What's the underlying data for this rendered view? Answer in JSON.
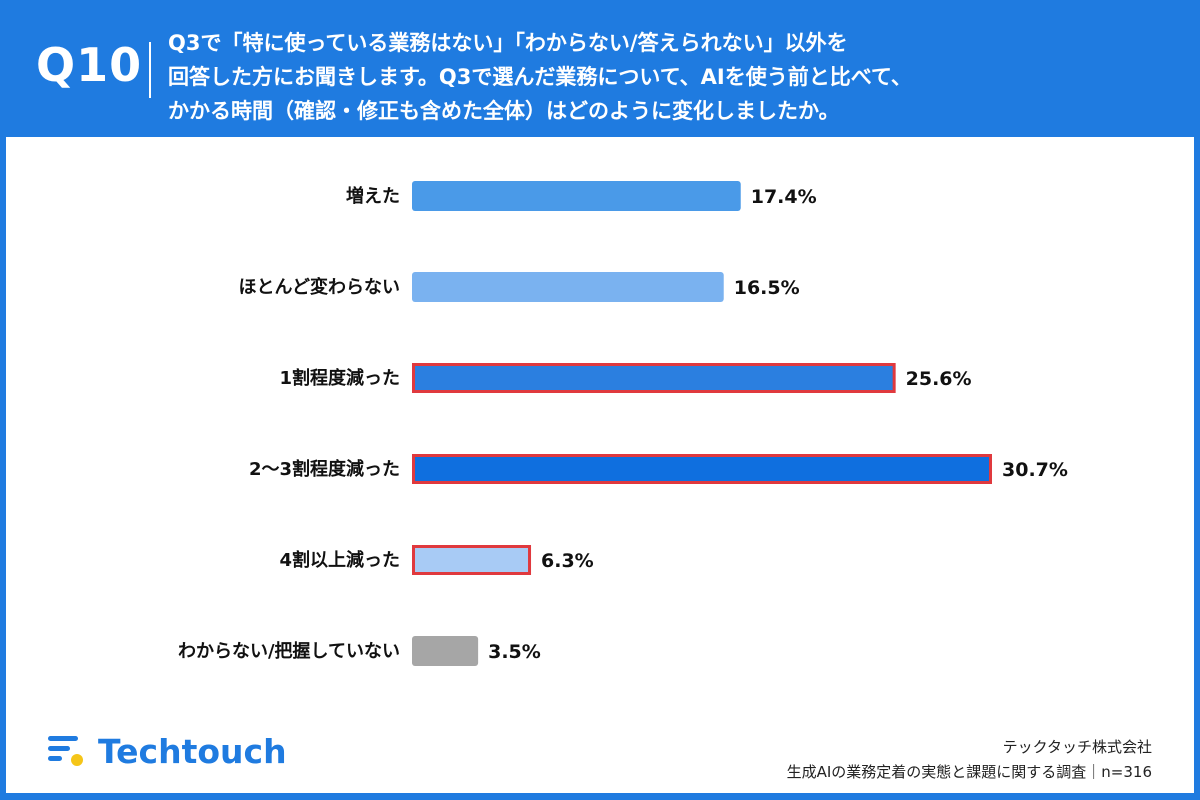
{
  "header": {
    "question_number": "Q10",
    "question_lines": [
      "Q3で「特に使っている業務はない」「わからない/答えられない」以外を",
      "回答した方にお聞きします。Q3で選んだ業務について、AIを使う前と比べて、",
      "かかる時間（確認・修正も含めた全体）はどのように変化しましたか。"
    ]
  },
  "chart_data": {
    "type": "bar",
    "orientation": "horizontal",
    "categories": [
      "増えた",
      "ほとんど変わらない",
      "1割程度減った",
      "2〜3割程度減った",
      "4割以上減った",
      "わからない/把握していない"
    ],
    "values": [
      17.4,
      16.5,
      25.6,
      30.7,
      6.3,
      3.5
    ],
    "value_labels": [
      "17.4%",
      "16.5%",
      "25.6%",
      "30.7%",
      "6.3%",
      "3.5%"
    ],
    "bar_colors": [
      "#4a9ae8",
      "#7ab2f0",
      "#2b7fe0",
      "#0f6fdf",
      "#a8cbf5",
      "#a6a6a6"
    ],
    "highlighted": [
      false,
      false,
      true,
      true,
      true,
      false
    ],
    "highlight_color": "#e0393e",
    "xlim": [
      0,
      30.7
    ],
    "grid": false,
    "legend": "none"
  },
  "footer": {
    "logo_text": "Techtouch",
    "company": "テックタッチ株式会社",
    "survey": "生成AIの業務定着の実態と課題に関する調査｜n=316"
  },
  "colors": {
    "brand_blue": "#1f7be0",
    "logo_yellow": "#f5c518"
  }
}
